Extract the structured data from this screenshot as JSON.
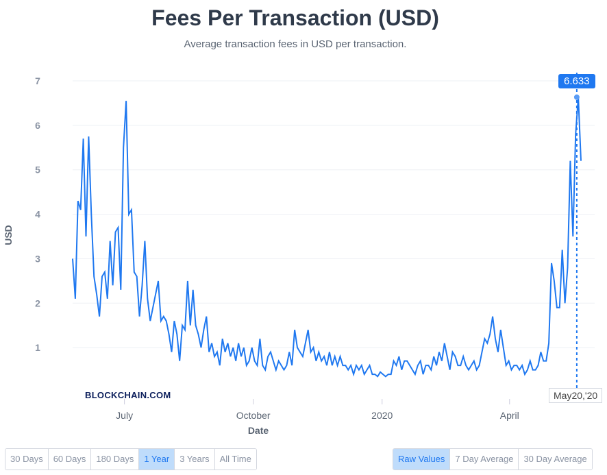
{
  "header": {
    "title": "Fees Per Transaction (USD)",
    "subtitle": "Average transaction fees in USD per transaction."
  },
  "brand": "BLOCKCHAIN.COM",
  "tooltip": {
    "value": "6.633",
    "date": "May20,'20"
  },
  "range_buttons": [
    {
      "label": "30 Days",
      "active": false
    },
    {
      "label": "60 Days",
      "active": false
    },
    {
      "label": "180 Days",
      "active": false
    },
    {
      "label": "1 Year",
      "active": true
    },
    {
      "label": "3 Years",
      "active": false
    },
    {
      "label": "All Time",
      "active": false
    }
  ],
  "avg_buttons": [
    {
      "label": "Raw Values",
      "active": true
    },
    {
      "label": "7 Day Average",
      "active": false
    },
    {
      "label": "30 Day Average",
      "active": false
    }
  ],
  "colors": {
    "line": "#1f78f0",
    "grid": "#eef0f4",
    "axis_text": "#8a93a3"
  },
  "chart_data": {
    "type": "line",
    "title": "Fees Per Transaction (USD)",
    "xlabel": "Date",
    "ylabel": "USD",
    "ylim": [
      0,
      7
    ],
    "yticks": [
      "1",
      "2",
      "3",
      "4",
      "5",
      "6",
      "7"
    ],
    "xticks": [
      {
        "label": "July",
        "date": "2019-07-01"
      },
      {
        "label": "October",
        "date": "2019-10-01"
      },
      {
        "label": "2020",
        "date": "2020-01-01"
      },
      {
        "label": "April",
        "date": "2020-04-01"
      }
    ],
    "start_date": "2019-05-25",
    "end_date": "2020-05-22",
    "highlight": {
      "date": "2020-05-20",
      "value": 6.633
    },
    "series": [
      {
        "name": "Fees Per Transaction",
        "values": [
          3.0,
          2.1,
          4.3,
          4.1,
          5.7,
          3.5,
          5.75,
          4.0,
          2.6,
          2.2,
          1.7,
          2.6,
          2.7,
          2.1,
          3.4,
          2.4,
          3.6,
          3.7,
          2.3,
          5.5,
          6.55,
          4.0,
          4.1,
          2.7,
          2.6,
          1.7,
          2.4,
          3.4,
          2.1,
          1.6,
          1.9,
          2.2,
          2.5,
          1.6,
          1.7,
          1.6,
          1.3,
          0.9,
          1.6,
          1.3,
          0.7,
          1.5,
          1.4,
          2.5,
          1.5,
          2.3,
          1.5,
          1.3,
          1.0,
          1.4,
          1.7,
          0.9,
          1.1,
          0.8,
          0.9,
          0.6,
          1.2,
          0.9,
          1.1,
          0.8,
          1.0,
          0.7,
          1.1,
          0.8,
          1.0,
          0.6,
          0.7,
          1.0,
          0.7,
          0.6,
          1.2,
          0.6,
          0.5,
          0.8,
          0.9,
          0.7,
          0.5,
          0.7,
          0.6,
          0.5,
          0.6,
          0.9,
          0.6,
          1.4,
          1.0,
          0.9,
          0.8,
          1.1,
          1.4,
          0.9,
          1.0,
          0.7,
          0.9,
          0.7,
          0.8,
          0.6,
          0.9,
          0.6,
          0.8,
          0.6,
          0.8,
          0.6,
          0.6,
          0.5,
          0.6,
          0.4,
          0.6,
          0.5,
          0.6,
          0.4,
          0.5,
          0.6,
          0.4,
          0.4,
          0.35,
          0.45,
          0.4,
          0.35,
          0.4,
          0.4,
          0.7,
          0.6,
          0.8,
          0.5,
          0.7,
          0.7,
          0.6,
          0.5,
          0.4,
          0.6,
          0.7,
          0.4,
          0.6,
          0.6,
          0.5,
          0.8,
          0.6,
          0.9,
          0.7,
          1.1,
          0.8,
          0.5,
          0.9,
          0.8,
          0.6,
          0.6,
          0.8,
          0.6,
          0.5,
          0.6,
          0.7,
          0.5,
          0.6,
          0.9,
          1.2,
          1.1,
          1.3,
          1.7,
          1.2,
          0.9,
          1.4,
          1.0,
          0.6,
          0.7,
          0.5,
          0.6,
          0.6,
          0.5,
          0.6,
          0.4,
          0.5,
          0.7,
          0.5,
          0.5,
          0.6,
          0.9,
          0.7,
          0.7,
          1.1,
          2.9,
          2.5,
          1.9,
          1.9,
          3.2,
          2.0,
          2.8,
          5.2,
          3.5,
          5.8,
          6.633,
          5.2
        ]
      }
    ]
  }
}
